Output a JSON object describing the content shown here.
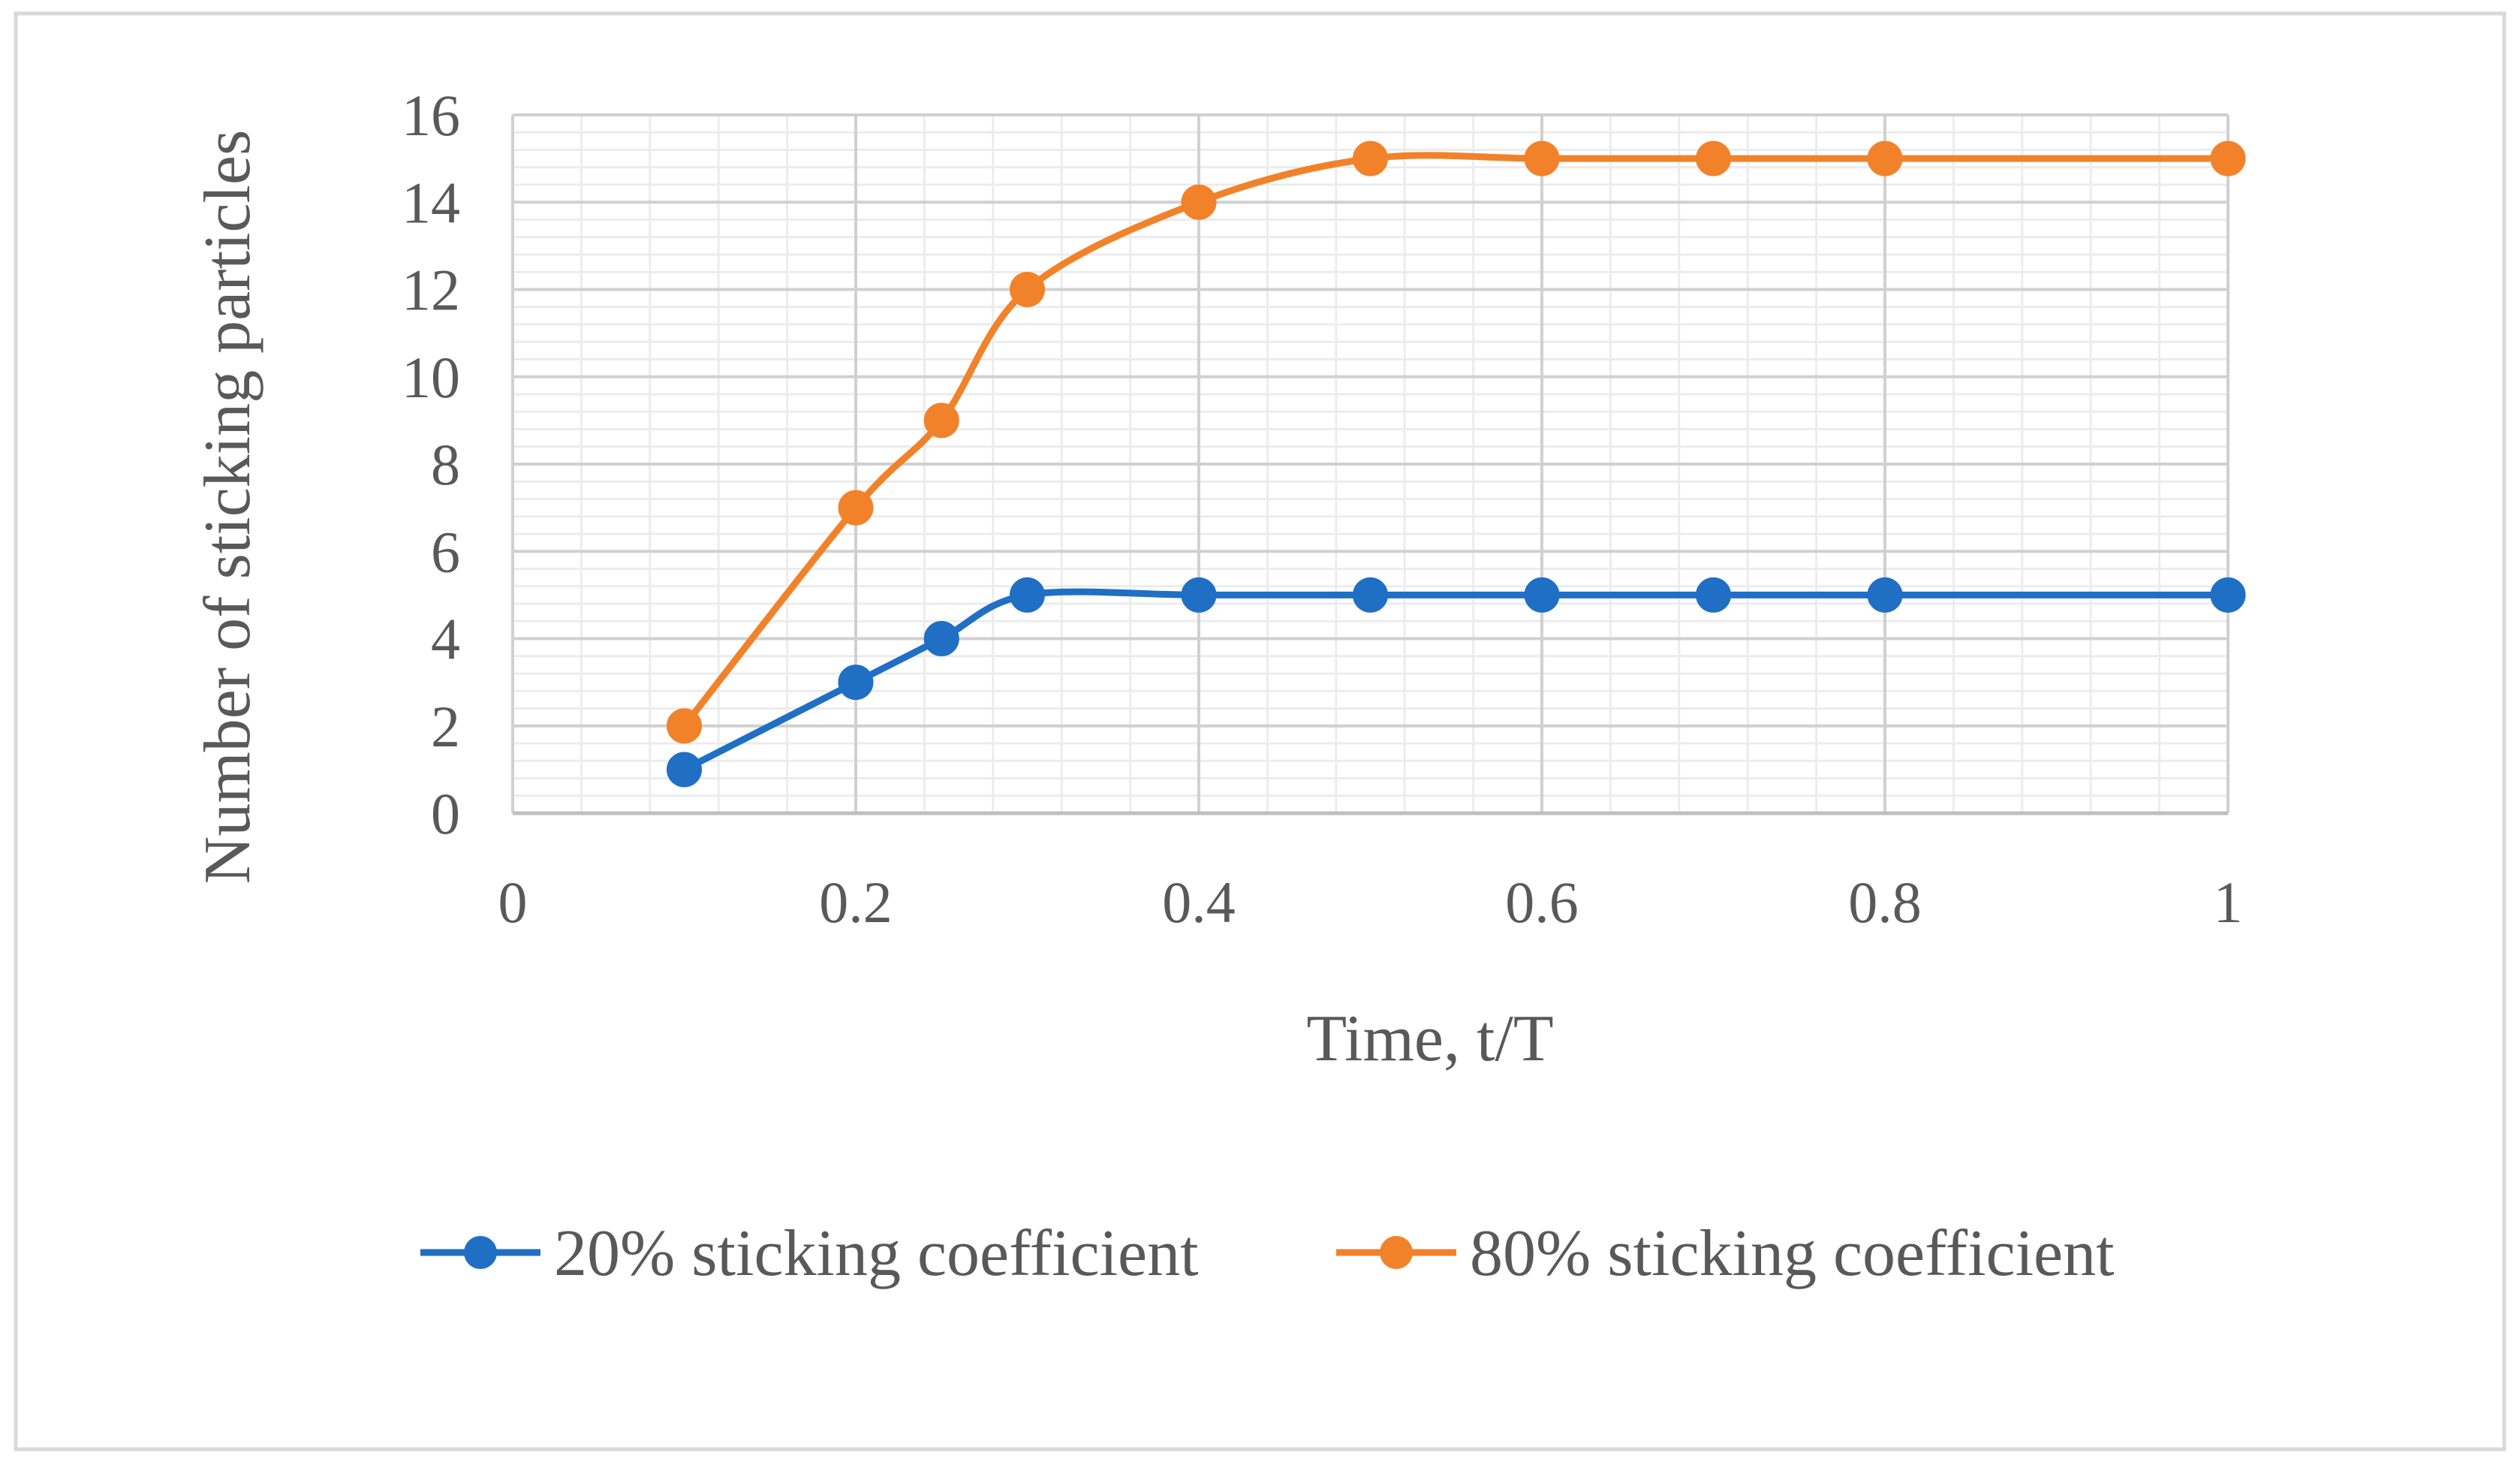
{
  "chart_data": {
    "type": "line",
    "title": "",
    "xlabel": "Time, t/T",
    "ylabel": "Number of sticking particles",
    "xlim": [
      0,
      1
    ],
    "ylim": [
      0,
      16
    ],
    "x_ticks": [
      "0",
      "0.2",
      "0.4",
      "0.6",
      "0.8",
      "1"
    ],
    "y_ticks": [
      "0",
      "2",
      "4",
      "6",
      "8",
      "10",
      "12",
      "14",
      "16"
    ],
    "grid": true,
    "minor_grid": true,
    "smoothed": true,
    "legend_position": "bottom",
    "series": [
      {
        "name": "20% sticking coefficient",
        "color": "#1F6FC5",
        "x": [
          0.1,
          0.2,
          0.25,
          0.3,
          0.4,
          0.5,
          0.6,
          0.7,
          0.8,
          1.0
        ],
        "y": [
          1,
          3,
          4,
          5,
          5,
          5,
          5,
          5,
          5,
          5
        ]
      },
      {
        "name": "80% sticking coefficient",
        "color": "#F28229",
        "x": [
          0.1,
          0.2,
          0.25,
          0.3,
          0.4,
          0.5,
          0.6,
          0.7,
          0.8,
          1.0
        ],
        "y": [
          2,
          7,
          9,
          12,
          14,
          15,
          15,
          15,
          15,
          15
        ]
      }
    ]
  }
}
